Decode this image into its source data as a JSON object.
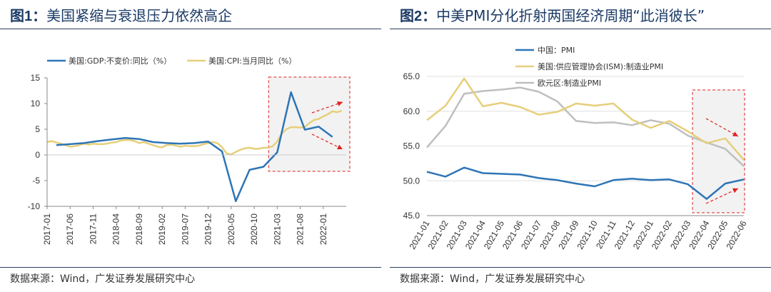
{
  "left": {
    "title_prefix": "图1：",
    "title_text": "美国紧缩与衰退压力依然高企",
    "source": "数据来源：Wind，广发证券发展研究中心",
    "chart_data": {
      "type": "line",
      "title": "美国紧缩与衰退压力依然高企",
      "ylim": [
        -10,
        15
      ],
      "yticks": [
        "15",
        "10",
        "5",
        "0",
        "-5",
        "-10"
      ],
      "ytick_values": [
        15,
        10,
        5,
        0,
        -5,
        -10
      ],
      "xtick_labels": [
        "2017-01",
        "2017-06",
        "2017-11",
        "2018-04",
        "2018-09",
        "2019-02",
        "2019-07",
        "2019-12",
        "2020-05",
        "2020-10",
        "2021-03",
        "2021-08",
        "2022-01"
      ],
      "x_range": [
        "2017-01",
        "2022-06"
      ],
      "legend_location": "top",
      "series": [
        {
          "name": "美国:GDP:不变价:同比（%）",
          "color": "#2e75b6",
          "points": [
            [
              "2017-03",
              1.9
            ],
            [
              "2017-06",
              2.1
            ],
            [
              "2017-09",
              2.3
            ],
            [
              "2017-12",
              2.7
            ],
            [
              "2018-03",
              3.0
            ],
            [
              "2018-06",
              3.3
            ],
            [
              "2018-09",
              3.1
            ],
            [
              "2018-12",
              2.5
            ],
            [
              "2019-03",
              2.3
            ],
            [
              "2019-06",
              2.2
            ],
            [
              "2019-09",
              2.3
            ],
            [
              "2019-12",
              2.6
            ],
            [
              "2020-03",
              0.7
            ],
            [
              "2020-06",
              -9.0
            ],
            [
              "2020-09",
              -2.9
            ],
            [
              "2020-12",
              -2.3
            ],
            [
              "2021-03",
              0.5
            ],
            [
              "2021-06",
              12.2
            ],
            [
              "2021-09",
              4.9
            ],
            [
              "2021-12",
              5.5
            ],
            [
              "2022-03",
              3.5
            ]
          ]
        },
        {
          "name": "美国:CPI:当月同比（%）",
          "color": "#e6cf7a",
          "points": [
            [
              "2017-01",
              2.5
            ],
            [
              "2017-02",
              2.7
            ],
            [
              "2017-03",
              2.4
            ],
            [
              "2017-04",
              2.2
            ],
            [
              "2017-05",
              1.9
            ],
            [
              "2017-06",
              1.6
            ],
            [
              "2017-07",
              1.7
            ],
            [
              "2017-08",
              1.9
            ],
            [
              "2017-09",
              2.2
            ],
            [
              "2017-10",
              2.0
            ],
            [
              "2017-11",
              2.2
            ],
            [
              "2017-12",
              2.1
            ],
            [
              "2018-01",
              2.1
            ],
            [
              "2018-02",
              2.2
            ],
            [
              "2018-03",
              2.4
            ],
            [
              "2018-04",
              2.5
            ],
            [
              "2018-05",
              2.8
            ],
            [
              "2018-06",
              2.9
            ],
            [
              "2018-07",
              2.9
            ],
            [
              "2018-08",
              2.7
            ],
            [
              "2018-09",
              2.3
            ],
            [
              "2018-10",
              2.5
            ],
            [
              "2018-11",
              2.2
            ],
            [
              "2018-12",
              1.9
            ],
            [
              "2019-01",
              1.6
            ],
            [
              "2019-02",
              1.5
            ],
            [
              "2019-03",
              1.9
            ],
            [
              "2019-04",
              2.0
            ],
            [
              "2019-05",
              1.8
            ],
            [
              "2019-06",
              1.6
            ],
            [
              "2019-07",
              1.8
            ],
            [
              "2019-08",
              1.7
            ],
            [
              "2019-09",
              1.7
            ],
            [
              "2019-10",
              1.8
            ],
            [
              "2019-11",
              2.1
            ],
            [
              "2019-12",
              2.3
            ],
            [
              "2020-01",
              2.5
            ],
            [
              "2020-02",
              2.3
            ],
            [
              "2020-03",
              1.5
            ],
            [
              "2020-04",
              0.3
            ],
            [
              "2020-05",
              0.1
            ],
            [
              "2020-06",
              0.6
            ],
            [
              "2020-07",
              1.0
            ],
            [
              "2020-08",
              1.3
            ],
            [
              "2020-09",
              1.4
            ],
            [
              "2020-10",
              1.2
            ],
            [
              "2020-11",
              1.2
            ],
            [
              "2020-12",
              1.4
            ],
            [
              "2021-01",
              1.4
            ],
            [
              "2021-02",
              1.7
            ],
            [
              "2021-03",
              2.6
            ],
            [
              "2021-04",
              4.2
            ],
            [
              "2021-05",
              5.0
            ],
            [
              "2021-06",
              5.4
            ],
            [
              "2021-07",
              5.4
            ],
            [
              "2021-08",
              5.3
            ],
            [
              "2021-09",
              5.4
            ],
            [
              "2021-10",
              6.2
            ],
            [
              "2021-11",
              6.8
            ],
            [
              "2021-12",
              7.0
            ],
            [
              "2022-01",
              7.5
            ],
            [
              "2022-02",
              7.9
            ],
            [
              "2022-03",
              8.5
            ],
            [
              "2022-04",
              8.3
            ],
            [
              "2022-05",
              8.6
            ]
          ]
        }
      ],
      "annotations": [
        "dashed red highlight box 2021-03 to 2022-06",
        "upward red arrow",
        "downward red arrow"
      ]
    }
  },
  "right": {
    "title_prefix": "图2：",
    "title_text": "中美PMI分化折射两国经济周期“此消彼长”",
    "source": "数据来源：Wind，广发证券发展研究中心",
    "chart_data": {
      "type": "line",
      "title": "中美PMI分化折射两国经济周期“此消彼长”",
      "ylim": [
        45,
        65
      ],
      "yticks": [
        "65.0",
        "60.0",
        "55.0",
        "50.0",
        "45.0"
      ],
      "ytick_values": [
        65,
        60,
        55,
        50,
        45
      ],
      "categories": [
        "2021-01",
        "2021-02",
        "2021-03",
        "2021-04",
        "2021-05",
        "2021-06",
        "2021-07",
        "2021-08",
        "2021-09",
        "2021-10",
        "2021-11",
        "2021-12",
        "2022-01",
        "2022-02",
        "2022-03",
        "2022-04",
        "2022-05",
        "2022-06"
      ],
      "legend_location": "top-left",
      "series": [
        {
          "name": "中国：PMI",
          "color": "#2e75b6",
          "values": [
            51.3,
            50.6,
            51.9,
            51.1,
            51.0,
            50.9,
            50.4,
            50.1,
            49.6,
            49.2,
            50.1,
            50.3,
            50.1,
            50.2,
            49.5,
            47.4,
            49.6,
            50.2
          ]
        },
        {
          "name": "美国:供应管理协会(ISM):制造业PMI",
          "color": "#e6cf7a",
          "values": [
            58.7,
            60.8,
            64.7,
            60.7,
            61.2,
            60.6,
            59.5,
            59.9,
            61.1,
            60.8,
            61.1,
            58.8,
            57.6,
            58.6,
            57.1,
            55.4,
            56.1,
            53.0
          ]
        },
        {
          "name": "欧元区:制造业PMI",
          "color": "#bfbfbf",
          "values": [
            54.8,
            57.9,
            62.5,
            62.9,
            63.1,
            63.4,
            62.8,
            61.4,
            58.6,
            58.3,
            58.4,
            58.0,
            58.7,
            58.2,
            56.5,
            55.5,
            54.6,
            52.1
          ]
        }
      ],
      "annotations": [
        "dashed red highlight box 2022-03 to 2022-06",
        "downward red arrow",
        "upward red arrow"
      ]
    }
  }
}
